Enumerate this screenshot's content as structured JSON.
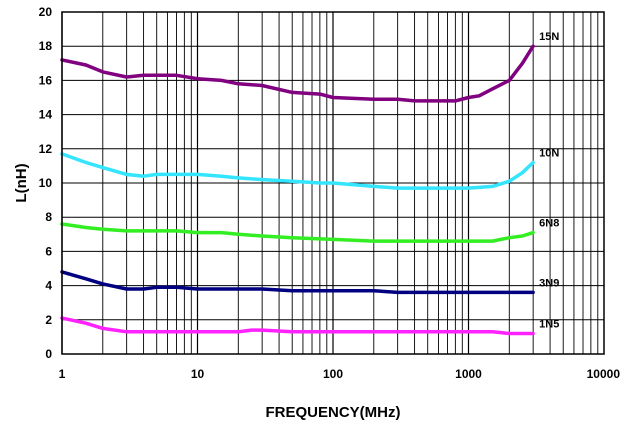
{
  "chart_data": {
    "type": "line",
    "title": "",
    "xlabel": "FREQUENCY(MHz)",
    "ylabel": "L(nH)",
    "xscale": "log",
    "xlim": [
      1,
      10000
    ],
    "ylim": [
      0,
      20
    ],
    "grid": true,
    "x_ticks": [
      "1",
      "10",
      "100",
      "1000",
      "10000"
    ],
    "y_ticks": [
      "0",
      "2",
      "4",
      "6",
      "8",
      "10",
      "12",
      "14",
      "16",
      "18",
      "20"
    ],
    "series": [
      {
        "name": "15N",
        "color": "#800080",
        "x": [
          1,
          1.5,
          2,
          3,
          4,
          5,
          7,
          10,
          15,
          20,
          30,
          50,
          80,
          100,
          200,
          300,
          400,
          600,
          800,
          1000,
          1200,
          1500,
          2000,
          2500,
          3000
        ],
        "y": [
          17.2,
          16.9,
          16.5,
          16.2,
          16.3,
          16.3,
          16.3,
          16.1,
          16.0,
          15.8,
          15.7,
          15.3,
          15.2,
          15.0,
          14.9,
          14.9,
          14.8,
          14.8,
          14.8,
          15.0,
          15.1,
          15.5,
          16.0,
          17.0,
          18.0
        ]
      },
      {
        "name": "10N",
        "color": "#33e5ff",
        "x": [
          1,
          1.5,
          2,
          3,
          4,
          5,
          7,
          10,
          15,
          20,
          30,
          50,
          80,
          100,
          200,
          300,
          500,
          800,
          1000,
          1500,
          2000,
          2500,
          3000
        ],
        "y": [
          11.7,
          11.2,
          10.9,
          10.5,
          10.4,
          10.5,
          10.5,
          10.5,
          10.4,
          10.3,
          10.2,
          10.1,
          10.0,
          10.0,
          9.8,
          9.7,
          9.7,
          9.7,
          9.7,
          9.8,
          10.1,
          10.6,
          11.2
        ]
      },
      {
        "name": "6N8",
        "color": "#33ee22",
        "x": [
          1,
          1.5,
          2,
          3,
          5,
          7,
          10,
          15,
          20,
          30,
          50,
          100,
          200,
          300,
          500,
          1000,
          1500,
          2000,
          2500,
          3000
        ],
        "y": [
          7.6,
          7.4,
          7.3,
          7.2,
          7.2,
          7.2,
          7.1,
          7.1,
          7.0,
          6.9,
          6.8,
          6.7,
          6.6,
          6.6,
          6.6,
          6.6,
          6.6,
          6.8,
          6.9,
          7.1
        ]
      },
      {
        "name": "3N9",
        "color": "#000080",
        "x": [
          1,
          1.5,
          2,
          3,
          4,
          5,
          7,
          10,
          20,
          30,
          50,
          100,
          200,
          300,
          500,
          1000,
          2000,
          3000
        ],
        "y": [
          4.8,
          4.4,
          4.1,
          3.8,
          3.8,
          3.9,
          3.9,
          3.8,
          3.8,
          3.8,
          3.7,
          3.7,
          3.7,
          3.6,
          3.6,
          3.6,
          3.6,
          3.6
        ]
      },
      {
        "name": "1N5",
        "color": "#ff22ff",
        "x": [
          1,
          1.5,
          2,
          3,
          5,
          10,
          20,
          25,
          30,
          50,
          100,
          200,
          500,
          1000,
          1500,
          2000,
          3000
        ],
        "y": [
          2.1,
          1.8,
          1.5,
          1.3,
          1.3,
          1.3,
          1.3,
          1.4,
          1.4,
          1.3,
          1.3,
          1.3,
          1.3,
          1.3,
          1.3,
          1.2,
          1.2
        ]
      }
    ]
  }
}
